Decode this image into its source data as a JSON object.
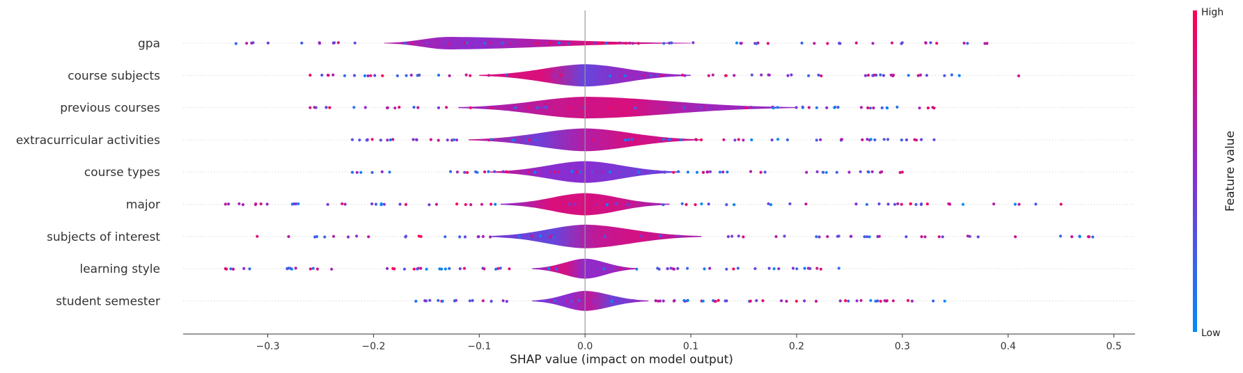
{
  "chart_data": {
    "type": "violin",
    "xlabel": "SHAP value (impact on model output)",
    "xlim": [
      -0.38,
      0.52
    ],
    "xticks": [
      -0.3,
      -0.2,
      -0.1,
      0.0,
      0.1,
      0.2,
      0.3,
      0.4,
      0.5
    ],
    "xtick_labels": [
      "−0.3",
      "−0.2",
      "−0.1",
      "0.0",
      "0.1",
      "0.2",
      "0.3",
      "0.4",
      "0.5"
    ],
    "colorbar": {
      "label": "Feature value",
      "high_label": "High",
      "low_label": "Low",
      "low_color": "#008bfb",
      "high_color": "#ff0052"
    },
    "features": [
      {
        "name": "gpa",
        "violin_range": [
          -0.19,
          0.1
        ],
        "violin_peak": -0.13,
        "violin_halfwidth": 0.45,
        "points_range": [
          -0.33,
          0.38
        ]
      },
      {
        "name": "course subjects",
        "violin_range": [
          -0.1,
          0.1
        ],
        "violin_peak": 0.0,
        "violin_halfwidth": 0.8,
        "points_range": [
          -0.26,
          0.41
        ]
      },
      {
        "name": "previous courses",
        "violin_range": [
          -0.12,
          0.2
        ],
        "violin_peak": 0.0,
        "violin_halfwidth": 0.78,
        "points_range": [
          -0.26,
          0.33
        ]
      },
      {
        "name": "extracurricular activities",
        "violin_range": [
          -0.11,
          0.11
        ],
        "violin_peak": 0.0,
        "violin_halfwidth": 0.82,
        "points_range": [
          -0.22,
          0.33
        ]
      },
      {
        "name": "course types",
        "violin_range": [
          -0.09,
          0.09
        ],
        "violin_peak": 0.0,
        "violin_halfwidth": 0.78,
        "points_range": [
          -0.22,
          0.3
        ]
      },
      {
        "name": "major",
        "violin_range": [
          -0.08,
          0.08
        ],
        "violin_peak": 0.0,
        "violin_halfwidth": 0.8,
        "points_range": [
          -0.34,
          0.45
        ]
      },
      {
        "name": "subjects of interest",
        "violin_range": [
          -0.09,
          0.11
        ],
        "violin_peak": 0.0,
        "violin_halfwidth": 0.85,
        "points_range": [
          -0.31,
          0.48
        ]
      },
      {
        "name": "learning style",
        "violin_range": [
          -0.05,
          0.05
        ],
        "violin_peak": 0.0,
        "violin_halfwidth": 0.72,
        "points_range": [
          -0.34,
          0.24
        ]
      },
      {
        "name": "student semester",
        "violin_range": [
          -0.05,
          0.06
        ],
        "violin_peak": 0.0,
        "violin_halfwidth": 0.72,
        "points_range": [
          -0.16,
          0.34
        ]
      }
    ]
  }
}
